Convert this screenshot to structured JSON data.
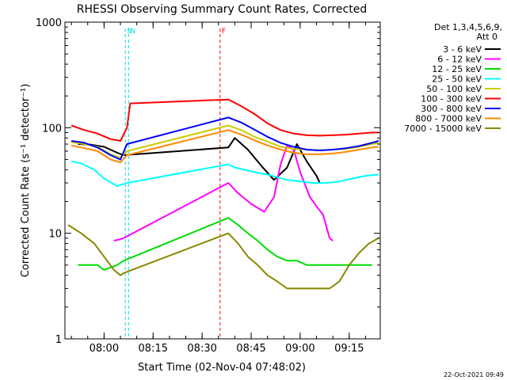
{
  "chart_data": {
    "type": "line",
    "title": "RHESSI Observing Summary Count Rates, Corrected",
    "xlabel": "Start Time (02-Nov-04 07:48:02)",
    "ylabel": "Corrected Count Rate (s⁻¹ detector⁻¹)",
    "x_scale": "time",
    "y_scale": "log",
    "xlim": [
      "07:48:02",
      "09:24:30"
    ],
    "ylim": [
      1,
      1000
    ],
    "x_ticks": [
      "08:00",
      "08:15",
      "08:30",
      "08:45",
      "09:00",
      "09:15"
    ],
    "y_ticks": [
      "1",
      "10",
      "100",
      "1000"
    ],
    "legend_header": [
      "Det 1,3,4,5,6,9,",
      "Att 0"
    ],
    "legend_position": "right",
    "timestamp": "22-Oct-2021 09:49",
    "markers": [
      {
        "label": "S",
        "time": "08:06:30",
        "color": "#00dddd"
      },
      {
        "label": "N",
        "time": "08:07:30",
        "color": "#00dddd"
      },
      {
        "label": "F",
        "time": "08:35:30",
        "color": "#ff0000"
      }
    ],
    "series": [
      {
        "name": "3 - 6 keV",
        "color": "#000000",
        "x": [
          "07:52",
          "07:56",
          "08:00",
          "08:04",
          "08:06",
          "08:38",
          "08:40",
          "08:44",
          "08:48",
          "08:52",
          "08:56",
          "08:59",
          "09:02",
          "09:05",
          "09:06"
        ],
        "y": [
          70,
          69,
          66,
          58,
          55,
          65,
          80,
          62,
          44,
          32,
          42,
          70,
          48,
          35,
          30
        ]
      },
      {
        "name": "6 - 12 keV",
        "color": "#ff00ff",
        "x": [
          "08:03",
          "08:05",
          "08:06",
          "08:38",
          "08:41",
          "08:45",
          "08:49",
          "08:52",
          "08:54",
          "08:56",
          "08:58",
          "09:00",
          "09:03",
          "09:05",
          "09:07",
          "09:09",
          "09:10"
        ],
        "y": [
          8.5,
          8.8,
          9,
          30,
          24,
          19,
          16,
          22,
          45,
          68,
          62,
          38,
          22,
          18,
          15,
          9,
          8.5
        ]
      },
      {
        "name": "12 - 25 keV",
        "color": "#00dd00",
        "x": [
          "07:52",
          "07:58",
          "08:00",
          "08:04",
          "08:06",
          "08:38",
          "08:41",
          "08:44",
          "08:47",
          "08:50",
          "08:53",
          "08:56",
          "08:59",
          "09:02",
          "09:06",
          "09:10",
          "09:14",
          "09:18",
          "09:22"
        ],
        "y": [
          5,
          5,
          4.5,
          5,
          5.5,
          14,
          12,
          10,
          8.5,
          7,
          6,
          5.5,
          5.5,
          5,
          5,
          5,
          5,
          5,
          5
        ]
      },
      {
        "name": "25 - 50 keV",
        "color": "#00ffff",
        "x": [
          "07:50",
          "07:53",
          "07:57",
          "08:00",
          "08:04",
          "08:07",
          "08:38",
          "08:40",
          "08:43",
          "08:46",
          "08:50",
          "08:53",
          "08:56",
          "09:00",
          "09:04",
          "09:08",
          "09:12",
          "09:16",
          "09:20",
          "09:24"
        ],
        "y": [
          48,
          46,
          40,
          33,
          28,
          30,
          45,
          42,
          40,
          38,
          36,
          34,
          32,
          31,
          30,
          30,
          31,
          33,
          35,
          36
        ]
      },
      {
        "name": "50 - 100 keV",
        "color": "#cccc00",
        "x": [
          "07:50",
          "07:54",
          "07:58",
          "08:02",
          "08:05",
          "08:07",
          "08:38",
          "08:42",
          "08:46",
          "08:50",
          "08:54",
          "08:58",
          "09:02",
          "09:06",
          "09:10",
          "09:14",
          "09:18",
          "09:22",
          "09:24"
        ],
        "y": [
          73,
          70,
          66,
          56,
          52,
          60,
          105,
          95,
          82,
          74,
          66,
          63,
          62,
          61,
          62,
          63,
          66,
          70,
          72
        ]
      },
      {
        "name": "100 - 300 keV",
        "color": "#ff0000",
        "x": [
          "07:50",
          "07:54",
          "07:58",
          "08:02",
          "08:05",
          "08:07",
          "08:08",
          "08:38",
          "08:42",
          "08:46",
          "08:50",
          "08:54",
          "08:58",
          "09:02",
          "09:06",
          "09:10",
          "09:14",
          "09:18",
          "09:22",
          "09:24"
        ],
        "y": [
          105,
          95,
          88,
          78,
          75,
          100,
          170,
          185,
          160,
          135,
          110,
          95,
          88,
          85,
          84,
          85,
          86,
          88,
          90,
          90
        ]
      },
      {
        "name": "300 - 800 keV",
        "color": "#0000ff",
        "x": [
          "07:50",
          "07:54",
          "07:58",
          "08:02",
          "08:05",
          "08:07",
          "08:38",
          "08:42",
          "08:46",
          "08:50",
          "08:54",
          "08:58",
          "09:02",
          "09:06",
          "09:10",
          "09:14",
          "09:18",
          "09:22",
          "09:24"
        ],
        "y": [
          75,
          72,
          65,
          55,
          50,
          70,
          125,
          112,
          96,
          82,
          72,
          66,
          62,
          61,
          62,
          64,
          67,
          72,
          75
        ]
      },
      {
        "name": "800 - 7000 keV",
        "color": "#ff8800",
        "x": [
          "07:50",
          "07:54",
          "07:58",
          "08:02",
          "08:05",
          "08:07",
          "08:38",
          "08:42",
          "08:46",
          "08:50",
          "08:54",
          "08:58",
          "09:02",
          "09:06",
          "09:10",
          "09:14",
          "09:18",
          "09:22",
          "09:24"
        ],
        "y": [
          68,
          64,
          60,
          50,
          47,
          55,
          95,
          86,
          76,
          68,
          62,
          58,
          56,
          56,
          57,
          59,
          62,
          65,
          66
        ]
      },
      {
        "name": "7000 - 15000 keV",
        "color": "#888800",
        "x": [
          "07:49",
          "07:53",
          "07:57",
          "08:00",
          "08:03",
          "08:05",
          "08:06",
          "08:38",
          "08:41",
          "08:44",
          "08:47",
          "08:50",
          "08:53",
          "08:56",
          "09:00",
          "09:04",
          "09:07",
          "09:09",
          "09:12",
          "09:15",
          "09:18",
          "09:21",
          "09:24"
        ],
        "y": [
          12,
          10,
          8,
          6,
          4.5,
          4,
          4.2,
          10,
          8,
          6,
          5,
          4,
          3.5,
          3,
          3,
          3,
          3,
          3,
          3.5,
          5,
          6.5,
          8,
          9
        ]
      }
    ]
  }
}
